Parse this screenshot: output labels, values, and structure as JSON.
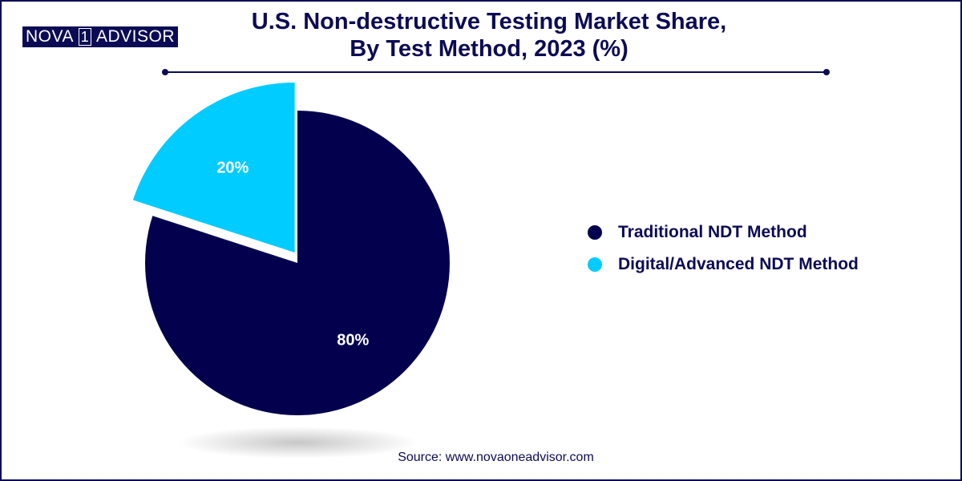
{
  "logo": {
    "part1": "NOVA",
    "part2": "1",
    "part3": "ADVISOR"
  },
  "title_line1": "U.S. Non-destructive Testing Market Share,",
  "title_line2": "By Test Method, 2023 (%)",
  "source": "Source: www.novaoneadvisor.com",
  "chart_data": {
    "type": "pie",
    "title": "U.S. Non-destructive Testing Market Share, By Test Method, 2023 (%)",
    "slices": [
      {
        "label": "Traditional NDT Method",
        "value": 80,
        "display": "80%",
        "color": "#03014d"
      },
      {
        "label": "Digital/Advanced NDT Method",
        "value": 20,
        "display": "20%",
        "color": "#00ccff",
        "exploded": true
      }
    ],
    "legend_position": "right"
  }
}
